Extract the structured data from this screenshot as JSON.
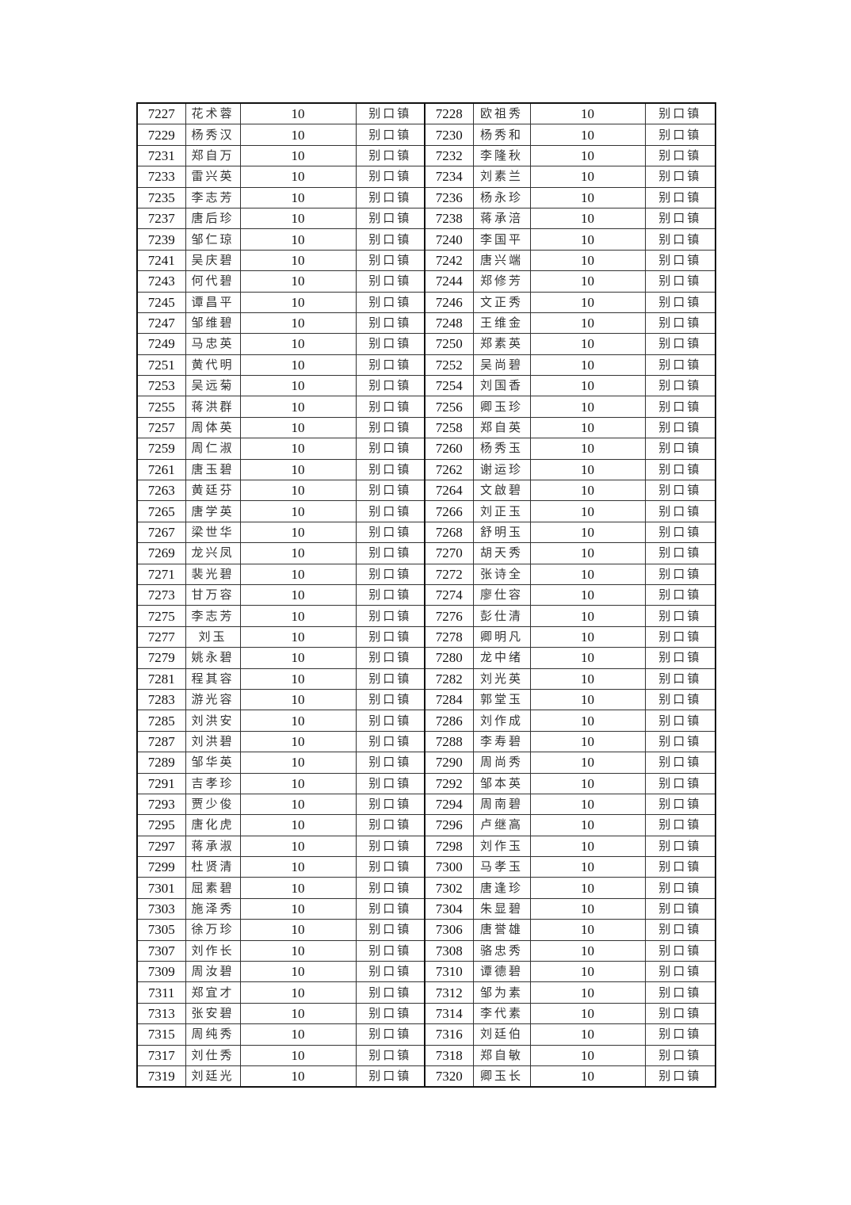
{
  "amount": "10",
  "town": "别口镇",
  "rows": [
    {
      "l": [
        "7227",
        "花术蓉"
      ],
      "r": [
        "7228",
        "欧祖秀"
      ]
    },
    {
      "l": [
        "7229",
        "杨秀汉"
      ],
      "r": [
        "7230",
        "杨秀和"
      ]
    },
    {
      "l": [
        "7231",
        "郑自万"
      ],
      "r": [
        "7232",
        "李隆秋"
      ]
    },
    {
      "l": [
        "7233",
        "雷兴英"
      ],
      "r": [
        "7234",
        "刘素兰"
      ]
    },
    {
      "l": [
        "7235",
        "李志芳"
      ],
      "r": [
        "7236",
        "杨永珍"
      ]
    },
    {
      "l": [
        "7237",
        "唐后珍"
      ],
      "r": [
        "7238",
        "蒋承涪"
      ]
    },
    {
      "l": [
        "7239",
        "邹仁琼"
      ],
      "r": [
        "7240",
        "李国平"
      ]
    },
    {
      "l": [
        "7241",
        "吴庆碧"
      ],
      "r": [
        "7242",
        "唐兴端"
      ]
    },
    {
      "l": [
        "7243",
        "何代碧"
      ],
      "r": [
        "7244",
        "郑修芳"
      ]
    },
    {
      "l": [
        "7245",
        "谭昌平"
      ],
      "r": [
        "7246",
        "文正秀"
      ]
    },
    {
      "l": [
        "7247",
        "邹维碧"
      ],
      "r": [
        "7248",
        "王维金"
      ]
    },
    {
      "l": [
        "7249",
        "马忠英"
      ],
      "r": [
        "7250",
        "郑素英"
      ]
    },
    {
      "l": [
        "7251",
        "黄代明"
      ],
      "r": [
        "7252",
        "吴尚碧"
      ]
    },
    {
      "l": [
        "7253",
        "吴远菊"
      ],
      "r": [
        "7254",
        "刘国香"
      ]
    },
    {
      "l": [
        "7255",
        "蒋洪群"
      ],
      "r": [
        "7256",
        "卿玉珍"
      ]
    },
    {
      "l": [
        "7257",
        "周体英"
      ],
      "r": [
        "7258",
        "郑自英"
      ]
    },
    {
      "l": [
        "7259",
        "周仁淑"
      ],
      "r": [
        "7260",
        "杨秀玉"
      ]
    },
    {
      "l": [
        "7261",
        "唐玉碧"
      ],
      "r": [
        "7262",
        "谢运珍"
      ]
    },
    {
      "l": [
        "7263",
        "黄廷芬"
      ],
      "r": [
        "7264",
        "文啟碧"
      ]
    },
    {
      "l": [
        "7265",
        "唐学英"
      ],
      "r": [
        "7266",
        "刘正玉"
      ]
    },
    {
      "l": [
        "7267",
        "梁世华"
      ],
      "r": [
        "7268",
        "舒明玉"
      ]
    },
    {
      "l": [
        "7269",
        "龙兴凤"
      ],
      "r": [
        "7270",
        "胡天秀"
      ]
    },
    {
      "l": [
        "7271",
        "裴光碧"
      ],
      "r": [
        "7272",
        "张诗全"
      ]
    },
    {
      "l": [
        "7273",
        "甘万容"
      ],
      "r": [
        "7274",
        "廖仕容"
      ]
    },
    {
      "l": [
        "7275",
        "李志芳"
      ],
      "r": [
        "7276",
        "彭仕清"
      ]
    },
    {
      "l": [
        "7277",
        "刘玉"
      ],
      "r": [
        "7278",
        "卿明凡"
      ]
    },
    {
      "l": [
        "7279",
        "姚永碧"
      ],
      "r": [
        "7280",
        "龙中绪"
      ]
    },
    {
      "l": [
        "7281",
        "程其容"
      ],
      "r": [
        "7282",
        "刘光英"
      ]
    },
    {
      "l": [
        "7283",
        "游光容"
      ],
      "r": [
        "7284",
        "郭堂玉"
      ]
    },
    {
      "l": [
        "7285",
        "刘洪安"
      ],
      "r": [
        "7286",
        "刘作成"
      ]
    },
    {
      "l": [
        "7287",
        "刘洪碧"
      ],
      "r": [
        "7288",
        "李寿碧"
      ]
    },
    {
      "l": [
        "7289",
        "邹华英"
      ],
      "r": [
        "7290",
        "周尚秀"
      ]
    },
    {
      "l": [
        "7291",
        "吉孝珍"
      ],
      "r": [
        "7292",
        "邹本英"
      ]
    },
    {
      "l": [
        "7293",
        "贾少俊"
      ],
      "r": [
        "7294",
        "周南碧"
      ]
    },
    {
      "l": [
        "7295",
        "唐化虎"
      ],
      "r": [
        "7296",
        "卢继高"
      ]
    },
    {
      "l": [
        "7297",
        "蒋承淑"
      ],
      "r": [
        "7298",
        "刘作玉"
      ]
    },
    {
      "l": [
        "7299",
        "杜贤清"
      ],
      "r": [
        "7300",
        "马孝玉"
      ]
    },
    {
      "l": [
        "7301",
        "屈素碧"
      ],
      "r": [
        "7302",
        "唐逢珍"
      ]
    },
    {
      "l": [
        "7303",
        "施泽秀"
      ],
      "r": [
        "7304",
        "朱显碧"
      ]
    },
    {
      "l": [
        "7305",
        "徐万珍"
      ],
      "r": [
        "7306",
        "唐誉雄"
      ]
    },
    {
      "l": [
        "7307",
        "刘作长"
      ],
      "r": [
        "7308",
        "骆忠秀"
      ]
    },
    {
      "l": [
        "7309",
        "周汝碧"
      ],
      "r": [
        "7310",
        "谭德碧"
      ]
    },
    {
      "l": [
        "7311",
        "郑宜才"
      ],
      "r": [
        "7312",
        "邹为素"
      ]
    },
    {
      "l": [
        "7313",
        "张安碧"
      ],
      "r": [
        "7314",
        "李代素"
      ]
    },
    {
      "l": [
        "7315",
        "周纯秀"
      ],
      "r": [
        "7316",
        "刘廷伯"
      ]
    },
    {
      "l": [
        "7317",
        "刘仕秀"
      ],
      "r": [
        "7318",
        "郑自敏"
      ]
    },
    {
      "l": [
        "7319",
        "刘廷光"
      ],
      "r": [
        "7320",
        "卿玉长"
      ]
    }
  ]
}
